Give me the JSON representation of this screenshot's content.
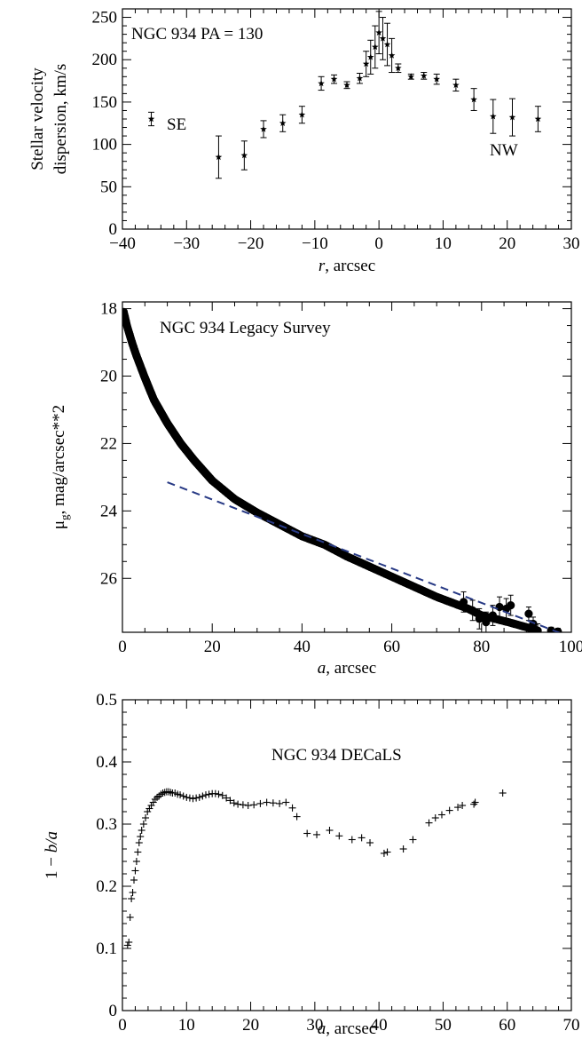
{
  "chart_data": [
    {
      "type": "scatter",
      "title": "",
      "annotations": [
        "NGC 934 PA = 130",
        "SE",
        "NW"
      ],
      "xlabel_italic": "r",
      "xlabel_rest": ", arcsec",
      "ylabel_line1": "Stellar velocity",
      "ylabel_line2": "dispersion, km/s",
      "xlim": [
        -40,
        30
      ],
      "ylim": [
        0,
        260
      ],
      "xticks": [
        -40,
        -30,
        -20,
        -10,
        0,
        10,
        20,
        30
      ],
      "yticks": [
        0,
        50,
        100,
        150,
        200,
        250
      ],
      "series": [
        {
          "marker": "star",
          "points": [
            {
              "x": -35.5,
              "y": 130,
              "err": 8
            },
            {
              "x": -25,
              "y": 85,
              "err": 25
            },
            {
              "x": -21,
              "y": 87,
              "err": 17
            },
            {
              "x": -18,
              "y": 118,
              "err": 10
            },
            {
              "x": -15,
              "y": 125,
              "err": 10
            },
            {
              "x": -12,
              "y": 135,
              "err": 10
            },
            {
              "x": -9,
              "y": 172,
              "err": 8
            },
            {
              "x": -7,
              "y": 177,
              "err": 5
            },
            {
              "x": -5,
              "y": 170,
              "err": 4
            },
            {
              "x": -3,
              "y": 178,
              "err": 6
            },
            {
              "x": -2,
              "y": 195,
              "err": 15
            },
            {
              "x": -1.3,
              "y": 203,
              "err": 20
            },
            {
              "x": -0.6,
              "y": 215,
              "err": 25
            },
            {
              "x": 0,
              "y": 232,
              "err": 25
            },
            {
              "x": 0.6,
              "y": 225,
              "err": 25
            },
            {
              "x": 1.3,
              "y": 218,
              "err": 25
            },
            {
              "x": 2,
              "y": 205,
              "err": 20
            },
            {
              "x": 3,
              "y": 190,
              "err": 5
            },
            {
              "x": 5,
              "y": 180,
              "err": 3
            },
            {
              "x": 7,
              "y": 181,
              "err": 4
            },
            {
              "x": 9,
              "y": 177,
              "err": 6
            },
            {
              "x": 12,
              "y": 170,
              "err": 7
            },
            {
              "x": 14.8,
              "y": 153,
              "err": 13
            },
            {
              "x": 17.8,
              "y": 133,
              "err": 20
            },
            {
              "x": 20.8,
              "y": 132,
              "err": 22
            },
            {
              "x": 24.8,
              "y": 130,
              "err": 15
            }
          ]
        }
      ]
    },
    {
      "type": "scatter",
      "title": "",
      "annotations": [
        "NGC 934 Legacy Survey"
      ],
      "xlabel_italic": "a",
      "xlabel_rest": ", arcsec",
      "ylabel_mu": "μ",
      "ylabel_sub": "g",
      "ylabel_rest": ", mag/arcsec**2",
      "xlim": [
        0,
        100
      ],
      "ylim": [
        27.6,
        17.8
      ],
      "xticks": [
        0,
        20,
        40,
        60,
        80,
        100
      ],
      "yticks": [
        18,
        20,
        22,
        24,
        26
      ],
      "profile": {
        "description_points": [
          [
            0.3,
            18.1
          ],
          [
            1,
            18.5
          ],
          [
            2,
            18.95
          ],
          [
            3,
            19.35
          ],
          [
            5,
            20.05
          ],
          [
            7,
            20.7
          ],
          [
            10,
            21.4
          ],
          [
            13,
            22.0
          ],
          [
            16,
            22.5
          ],
          [
            20,
            23.1
          ],
          [
            25,
            23.65
          ],
          [
            30,
            24.05
          ],
          [
            35,
            24.4
          ],
          [
            40,
            24.75
          ],
          [
            45,
            25.0
          ],
          [
            50,
            25.35
          ],
          [
            55,
            25.65
          ],
          [
            60,
            25.95
          ],
          [
            65,
            26.25
          ],
          [
            70,
            26.55
          ],
          [
            75,
            26.8
          ],
          [
            77,
            26.9
          ],
          [
            80,
            27.1
          ],
          [
            83,
            27.2
          ],
          [
            86,
            27.3
          ],
          [
            90,
            27.45
          ],
          [
            93,
            27.55
          ],
          [
            96,
            27.58
          ],
          [
            100,
            27.6
          ]
        ],
        "scatter_points": [
          {
            "x": 76,
            "y": 26.7,
            "err": 0.3
          },
          {
            "x": 78,
            "y": 26.95,
            "err": 0.3
          },
          {
            "x": 79.5,
            "y": 27.2,
            "err": 0.3
          },
          {
            "x": 81,
            "y": 27.3,
            "err": 0.3
          },
          {
            "x": 82.5,
            "y": 27.1,
            "err": 0.3
          },
          {
            "x": 84,
            "y": 26.85,
            "err": 0.3
          },
          {
            "x": 85.5,
            "y": 26.9,
            "err": 0.3
          },
          {
            "x": 86.5,
            "y": 26.8,
            "err": 0.3
          },
          {
            "x": 90.5,
            "y": 27.05,
            "err": 0.2
          },
          {
            "x": 91.5,
            "y": 27.35,
            "err": 0.2
          },
          {
            "x": 92.5,
            "y": 27.55,
            "err": 0.2
          },
          {
            "x": 95.5,
            "y": 27.55,
            "err": 0.1
          },
          {
            "x": 97,
            "y": 27.58,
            "err": 0.1
          }
        ]
      },
      "fit_line": {
        "x": [
          10,
          100
        ],
        "y": [
          23.15,
          27.75
        ],
        "color": "#283a85",
        "style": "dashed"
      }
    },
    {
      "type": "scatter",
      "title": "",
      "annotations": [
        "NGC 934 DECaLS"
      ],
      "xlabel_italic": "a",
      "xlabel_rest": ", arcsec",
      "ylabel_pre": "1 − ",
      "ylabel_italic": "b/a",
      "xlim": [
        0,
        70
      ],
      "ylim": [
        0,
        0.5
      ],
      "xticks": [
        0,
        10,
        20,
        30,
        40,
        50,
        60,
        70
      ],
      "yticks": [
        0,
        0.1,
        0.2,
        0.3,
        0.4,
        0.5
      ],
      "series": [
        {
          "marker": "plus",
          "points": [
            [
              0.8,
              0.105
            ],
            [
              1.0,
              0.11
            ],
            [
              1.2,
              0.15
            ],
            [
              1.4,
              0.18
            ],
            [
              1.6,
              0.19
            ],
            [
              1.8,
              0.21
            ],
            [
              2.0,
              0.225
            ],
            [
              2.2,
              0.24
            ],
            [
              2.4,
              0.255
            ],
            [
              2.6,
              0.27
            ],
            [
              2.8,
              0.28
            ],
            [
              3.0,
              0.29
            ],
            [
              3.3,
              0.3
            ],
            [
              3.6,
              0.31
            ],
            [
              3.9,
              0.32
            ],
            [
              4.2,
              0.325
            ],
            [
              4.5,
              0.33
            ],
            [
              4.8,
              0.335
            ],
            [
              5.1,
              0.34
            ],
            [
              5.4,
              0.343
            ],
            [
              5.7,
              0.345
            ],
            [
              6.0,
              0.348
            ],
            [
              6.3,
              0.35
            ],
            [
              6.6,
              0.351
            ],
            [
              6.9,
              0.352
            ],
            [
              7.2,
              0.352
            ],
            [
              7.5,
              0.351
            ],
            [
              7.8,
              0.35
            ],
            [
              8.2,
              0.35
            ],
            [
              8.6,
              0.348
            ],
            [
              9.0,
              0.347
            ],
            [
              9.5,
              0.345
            ],
            [
              10.0,
              0.343
            ],
            [
              10.5,
              0.342
            ],
            [
              11.0,
              0.341
            ],
            [
              11.5,
              0.342
            ],
            [
              12.0,
              0.343
            ],
            [
              12.5,
              0.345
            ],
            [
              13.0,
              0.347
            ],
            [
              13.5,
              0.348
            ],
            [
              14.0,
              0.349
            ],
            [
              14.5,
              0.349
            ],
            [
              15.0,
              0.348
            ],
            [
              15.6,
              0.346
            ],
            [
              16.2,
              0.342
            ],
            [
              16.8,
              0.338
            ],
            [
              17.4,
              0.334
            ],
            [
              18.0,
              0.332
            ],
            [
              18.8,
              0.331
            ],
            [
              19.6,
              0.33
            ],
            [
              20.5,
              0.331
            ],
            [
              21.5,
              0.333
            ],
            [
              22.5,
              0.335
            ],
            [
              23.5,
              0.334
            ],
            [
              24.5,
              0.333
            ],
            [
              25.5,
              0.335
            ],
            [
              26.5,
              0.326
            ],
            [
              27.2,
              0.312
            ],
            [
              28.8,
              0.285
            ],
            [
              30.3,
              0.283
            ],
            [
              32.3,
              0.29
            ],
            [
              33.8,
              0.281
            ],
            [
              35.8,
              0.275
            ],
            [
              37.3,
              0.278
            ],
            [
              38.6,
              0.27
            ],
            [
              40.8,
              0.253
            ],
            [
              41.3,
              0.255
            ],
            [
              43.8,
              0.26
            ],
            [
              45.3,
              0.275
            ],
            [
              47.8,
              0.302
            ],
            [
              48.8,
              0.31
            ],
            [
              49.8,
              0.315
            ],
            [
              51.0,
              0.322
            ],
            [
              52.3,
              0.327
            ],
            [
              53.0,
              0.33
            ],
            [
              54.8,
              0.332
            ],
            [
              55.0,
              0.335
            ],
            [
              59.3,
              0.35
            ]
          ]
        }
      ]
    }
  ]
}
